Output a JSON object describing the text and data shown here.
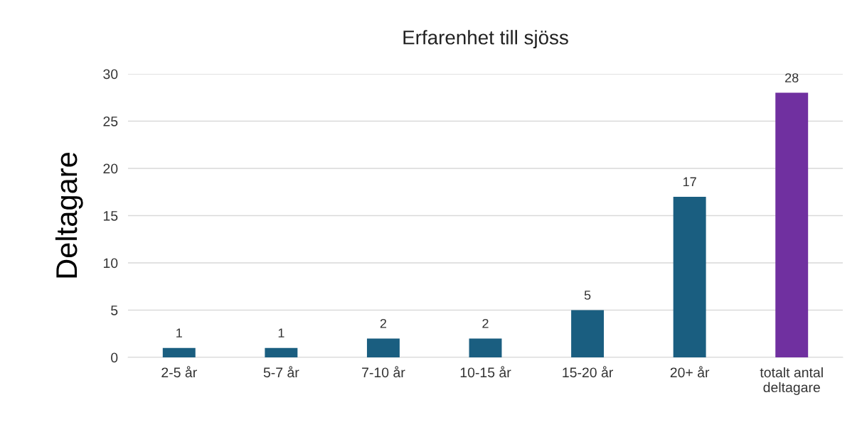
{
  "chart_data": {
    "type": "bar",
    "title": "Erfarenhet till sjöss",
    "ylabel": "Deltagare",
    "categories": [
      "2-5 år",
      "5-7 år",
      "7-10 år",
      "10-15 år",
      "15-20 år",
      "20+ år",
      "totalt antal\ndeltagare"
    ],
    "values": [
      1,
      1,
      2,
      2,
      5,
      17,
      28
    ],
    "colors": [
      "#1a5e80",
      "#1a5e80",
      "#1a5e80",
      "#1a5e80",
      "#1a5e80",
      "#1a5e80",
      "#7030a0"
    ],
    "ylim": [
      0,
      30
    ],
    "yticks": [
      0,
      5,
      10,
      15,
      20,
      25,
      30
    ],
    "grid": "y",
    "data_labels": true
  }
}
